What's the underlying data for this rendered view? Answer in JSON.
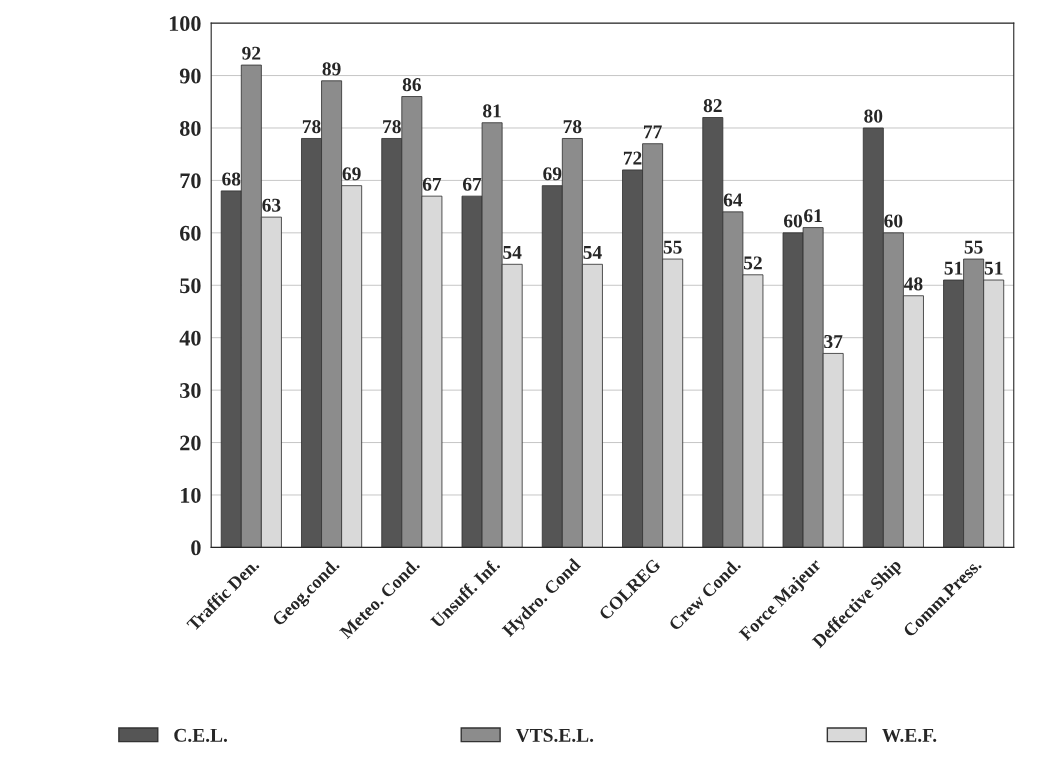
{
  "chart_data": {
    "type": "bar",
    "categories": [
      "Traffic Den.",
      "Geog.cond.",
      "Meteo. Cond.",
      "Unsuff. Inf.",
      "Hydro. Cond",
      "COLREG",
      "Crew Cond.",
      "Force Majeur",
      "Deffective Ship",
      "Comm.Press."
    ],
    "series": [
      {
        "name": "C.E.L.",
        "color": "#555555",
        "values": [
          68,
          78,
          78,
          67,
          69,
          72,
          82,
          60,
          80,
          51
        ]
      },
      {
        "name": "VTS.E.L.",
        "color": "#8c8c8c",
        "values": [
          92,
          89,
          86,
          81,
          78,
          77,
          64,
          61,
          60,
          55
        ]
      },
      {
        "name": "W.E.F.",
        "color": "#d9d9d9",
        "values": [
          63,
          69,
          67,
          54,
          54,
          55,
          52,
          37,
          48,
          51
        ]
      }
    ],
    "ylim": [
      0,
      100
    ],
    "yticks": [
      0,
      10,
      20,
      30,
      40,
      50,
      60,
      70,
      80,
      90,
      100
    ],
    "grid": "y",
    "legend": "bottom",
    "data_labels": true
  }
}
